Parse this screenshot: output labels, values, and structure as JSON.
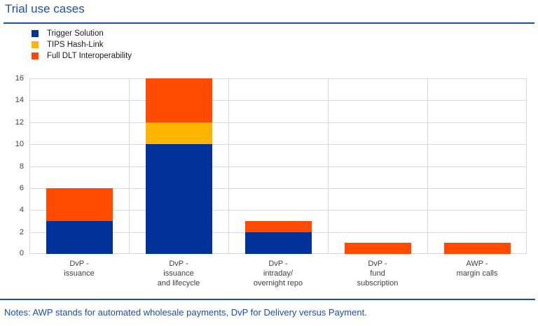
{
  "header": {
    "title": "Trial use cases"
  },
  "footer": {
    "notes": "Notes: AWP stands for automated wholesale payments, DvP for Delivery versus Payment."
  },
  "colors": {
    "accent_blue": "#1d4fa8",
    "grid": "#d9d9d9",
    "axis_text": "#404040",
    "legend_text": "#1a1a1a",
    "series_trigger_solution": "#003299",
    "series_tips_hash_link": "#FFB400",
    "series_full_dlt_interoperability": "#FF4B00"
  },
  "chart_data": {
    "type": "bar",
    "stacked": true,
    "title": "Trial use cases",
    "categories": [
      "DvP - issuance",
      "DvP - issuance and lifecycle",
      "DvP - intraday/ overnight repo",
      "DvP - fund subscription",
      "AWP - margin calls"
    ],
    "category_lines": [
      [
        "DvP -",
        "issuance"
      ],
      [
        "DvP -",
        "issuance",
        "and lifecycle"
      ],
      [
        "DvP -",
        "intraday/",
        "overnight repo"
      ],
      [
        "DvP -",
        "fund",
        "subscription"
      ],
      [
        "AWP -",
        "margin calls"
      ]
    ],
    "series": [
      {
        "name": "Trigger Solution",
        "color": "#003299",
        "values": [
          3,
          10,
          2,
          0,
          0
        ]
      },
      {
        "name": "TIPS Hash-Link",
        "color": "#FFB400",
        "values": [
          0,
          2,
          0,
          0,
          0
        ]
      },
      {
        "name": "Full DLT Interoperability",
        "color": "#FF4B00",
        "values": [
          3,
          4,
          1,
          1,
          1
        ]
      }
    ],
    "totals": [
      6,
      16,
      3,
      1,
      1
    ],
    "xlabel": "",
    "ylabel": "",
    "ylim": [
      0,
      16
    ],
    "ytick_step": 2,
    "grid": true,
    "legend_position": "top-left"
  }
}
